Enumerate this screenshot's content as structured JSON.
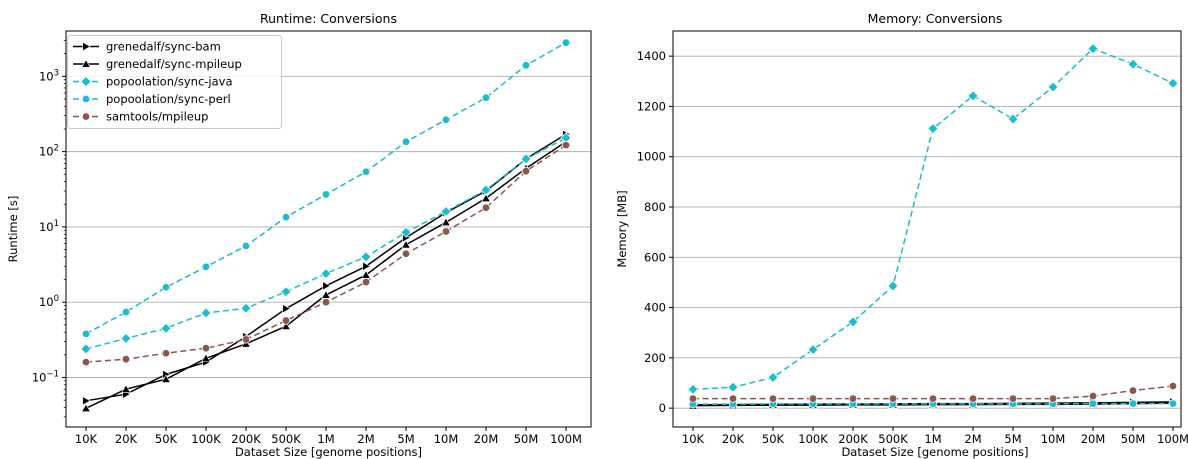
{
  "chart_data": [
    {
      "type": "line",
      "title": "Runtime:  Conversions",
      "xlabel": "Dataset Size  [genome positions]",
      "ylabel": "Runtime  [s]",
      "y_scale": "log",
      "ylim": [
        0.022,
        4000
      ],
      "y_ticks": [
        0.1,
        1,
        10,
        100,
        1000
      ],
      "y_tick_labels": [
        {
          "base": "10",
          "exp": "−1"
        },
        {
          "base": "10",
          "exp": "0"
        },
        {
          "base": "10",
          "exp": "1"
        },
        {
          "base": "10",
          "exp": "2"
        },
        {
          "base": "10",
          "exp": "3"
        }
      ],
      "grid": "horizontal",
      "legend_position": "top-left",
      "categories": [
        "10K",
        "20K",
        "50K",
        "100K",
        "200K",
        "500K",
        "1M",
        "2M",
        "5M",
        "10M",
        "20M",
        "50M",
        "100M"
      ],
      "series": [
        {
          "name": "grenedalf/sync-bam",
          "color": "#000000",
          "marker": "triangle-right",
          "dash": "solid",
          "values": [
            0.049,
            0.06,
            0.11,
            0.16,
            0.35,
            0.82,
            1.65,
            3.0,
            7.2,
            15.5,
            30.0,
            80.0,
            170.0
          ]
        },
        {
          "name": "grenedalf/sync-mpileup",
          "color": "#000000",
          "marker": "triangle-up",
          "dash": "solid",
          "values": [
            0.039,
            0.07,
            0.095,
            0.18,
            0.28,
            0.48,
            1.25,
            2.3,
            5.8,
            11.5,
            24.0,
            60.0,
            135.0
          ]
        },
        {
          "name": "popoolation/sync-java",
          "color": "#17becf",
          "marker": "diamond",
          "dash": "dashed",
          "values": [
            0.24,
            0.33,
            0.45,
            0.72,
            0.83,
            1.38,
            2.4,
            4.0,
            8.5,
            16.0,
            31.0,
            80.0,
            152.0
          ]
        },
        {
          "name": "popoolation/sync-perl",
          "color": "#17becf",
          "marker": "circle",
          "dash": "dashed",
          "values": [
            0.38,
            0.74,
            1.58,
            2.95,
            5.6,
            13.5,
            27.0,
            54.0,
            135.0,
            265.0,
            520.0,
            1400.0,
            2800.0
          ]
        },
        {
          "name": "samtools/mpileup",
          "color": "#8c564b",
          "marker": "circle",
          "dash": "dashed",
          "values": [
            0.16,
            0.175,
            0.21,
            0.245,
            0.32,
            0.57,
            1.0,
            1.85,
            4.4,
            8.7,
            18.0,
            55.0,
            122.0
          ]
        }
      ]
    },
    {
      "type": "line",
      "title": "Memory:  Conversions",
      "xlabel": "Dataset Size  [genome positions]",
      "ylabel": "Memory  [MB]",
      "ylim": [
        -75,
        1500
      ],
      "y_ticks": [
        0,
        200,
        400,
        600,
        800,
        1000,
        1200,
        1400
      ],
      "grid": "horizontal",
      "categories": [
        "10K",
        "20K",
        "50K",
        "100K",
        "200K",
        "500K",
        "1M",
        "2M",
        "5M",
        "10M",
        "20M",
        "50M",
        "100M"
      ],
      "series": [
        {
          "name": "grenedalf/sync-bam",
          "color": "#000000",
          "marker": "triangle-right",
          "dash": "solid",
          "values": [
            13,
            14,
            15,
            16,
            16,
            17,
            18,
            18,
            19,
            20,
            21,
            23,
            25
          ]
        },
        {
          "name": "grenedalf/sync-mpileup",
          "color": "#000000",
          "marker": "triangle-up",
          "dash": "solid",
          "values": [
            10,
            11,
            12,
            12,
            13,
            13,
            14,
            14,
            15,
            15,
            16,
            18,
            20
          ]
        },
        {
          "name": "popoolation/sync-java",
          "color": "#17becf",
          "marker": "diamond",
          "dash": "dashed",
          "values": [
            75,
            83,
            122,
            233,
            343,
            486,
            1112,
            1242,
            1150,
            1277,
            1430,
            1368,
            1292
          ]
        },
        {
          "name": "popoolation/sync-perl",
          "color": "#17becf",
          "marker": "circle",
          "dash": "dashed",
          "values": [
            16,
            16,
            17,
            17,
            17,
            17,
            17,
            17,
            17,
            17,
            18,
            18,
            18
          ]
        },
        {
          "name": "samtools/mpileup",
          "color": "#8c564b",
          "marker": "circle",
          "dash": "dashed",
          "values": [
            38,
            38,
            38,
            38,
            38,
            38,
            38,
            38,
            38,
            38,
            48,
            70,
            88
          ]
        }
      ]
    }
  ]
}
